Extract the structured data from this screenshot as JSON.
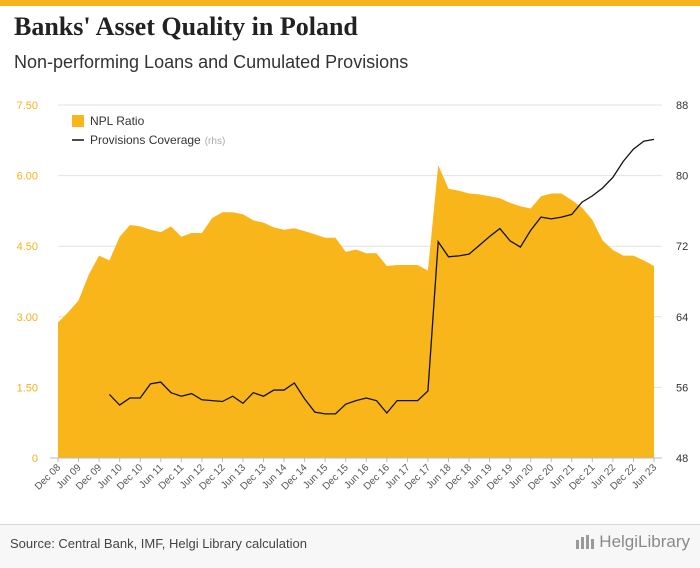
{
  "header": {
    "title": "Banks' Asset Quality in Poland",
    "subtitle": "Non-performing Loans and Cumulated Provisions"
  },
  "footer": {
    "source": "Source: Central Bank, IMF, Helgi Library calculation",
    "brand": "HelgiLibrary"
  },
  "colors": {
    "accent": "#f5b21b",
    "area_fill": "#f8b61b",
    "line": "#111111",
    "grid": "#e2e2e2",
    "left_axis_text": "#f5b21b",
    "right_axis_text": "#333333",
    "x_axis_text": "#555555"
  },
  "chart_data": {
    "type": "area",
    "x": [
      "Dec 08",
      "Mar 09",
      "Jun 09",
      "Sep 09",
      "Dec 09",
      "Mar 10",
      "Jun 10",
      "Sep 10",
      "Dec 10",
      "Mar 11",
      "Jun 11",
      "Sep 11",
      "Dec 11",
      "Mar 12",
      "Jun 12",
      "Sep 12",
      "Dec 12",
      "Mar 13",
      "Jun 13",
      "Sep 13",
      "Dec 13",
      "Mar 14",
      "Jun 14",
      "Sep 14",
      "Dec 14",
      "Mar 15",
      "Jun 15",
      "Sep 15",
      "Dec 15",
      "Mar 16",
      "Jun 16",
      "Sep 16",
      "Dec 16",
      "Mar 17",
      "Jun 17",
      "Sep 17",
      "Dec 17",
      "Mar 18",
      "Jun 18",
      "Sep 18",
      "Dec 18",
      "Mar 19",
      "Jun 19",
      "Sep 19",
      "Dec 19",
      "Mar 20",
      "Jun 20",
      "Sep 20",
      "Dec 20",
      "Mar 21",
      "Jun 21",
      "Sep 21",
      "Dec 21",
      "Mar 22",
      "Jun 22",
      "Sep 22",
      "Dec 22",
      "Mar 23",
      "Jun 23"
    ],
    "x_tick_labels": [
      "Dec 08",
      "Jun 09",
      "Dec 09",
      "Jun 10",
      "Dec 10",
      "Jun 11",
      "Dec 11",
      "Jun 12",
      "Dec 12",
      "Jun 13",
      "Dec 13",
      "Jun 14",
      "Dec 14",
      "Jun 15",
      "Dec 15",
      "Jun 16",
      "Dec 16",
      "Jun 17",
      "Dec 17",
      "Jun 18",
      "Dec 18",
      "Jun 19",
      "Dec 19",
      "Jun 20",
      "Dec 20",
      "Jun 21",
      "Dec 21",
      "Jun 22",
      "Dec 22",
      "Jun 23"
    ],
    "series": [
      {
        "name": "NPL Ratio",
        "type": "area",
        "axis": "left",
        "values": [
          2.88,
          3.1,
          3.35,
          3.9,
          4.3,
          4.2,
          4.7,
          4.95,
          4.92,
          4.85,
          4.8,
          4.92,
          4.7,
          4.78,
          4.78,
          5.1,
          5.22,
          5.22,
          5.18,
          5.05,
          5.0,
          4.9,
          4.85,
          4.88,
          4.82,
          4.75,
          4.68,
          4.68,
          4.38,
          4.43,
          4.35,
          4.35,
          4.08,
          4.1,
          4.1,
          4.1,
          3.98,
          6.22,
          5.72,
          5.68,
          5.62,
          5.6,
          5.56,
          5.52,
          5.42,
          5.35,
          5.3,
          5.56,
          5.62,
          5.62,
          5.48,
          5.32,
          5.06,
          4.62,
          4.42,
          4.3,
          4.3,
          4.2,
          4.08
        ]
      },
      {
        "name": "Provisions Coverage",
        "name_suffix": "(rhs)",
        "type": "line",
        "axis": "right",
        "values": [
          null,
          null,
          null,
          null,
          null,
          55.2,
          54.0,
          54.8,
          54.8,
          56.4,
          56.6,
          55.4,
          55.0,
          55.3,
          54.6,
          54.5,
          54.4,
          55.0,
          54.2,
          55.4,
          55.0,
          55.7,
          55.7,
          56.5,
          54.7,
          53.2,
          53.0,
          53.0,
          54.1,
          54.5,
          54.8,
          54.5,
          53.1,
          54.5,
          54.5,
          54.5,
          55.6,
          72.5,
          70.8,
          70.9,
          71.1,
          72.1,
          73.1,
          74.0,
          72.6,
          71.9,
          73.8,
          75.3,
          75.1,
          75.3,
          75.6,
          77.0,
          77.7,
          78.6,
          79.8,
          81.6,
          83.0,
          83.9,
          84.1
        ]
      }
    ],
    "y_left": {
      "ticks": [
        "0",
        "1.50",
        "3.00",
        "4.50",
        "6.00",
        "7.50"
      ],
      "range": [
        0,
        7.5
      ]
    },
    "y_right": {
      "ticks": [
        "48",
        "56",
        "64",
        "72",
        "80",
        "88"
      ],
      "range": [
        48,
        88
      ]
    },
    "legend": {
      "position": "top-left"
    },
    "grid": true
  }
}
